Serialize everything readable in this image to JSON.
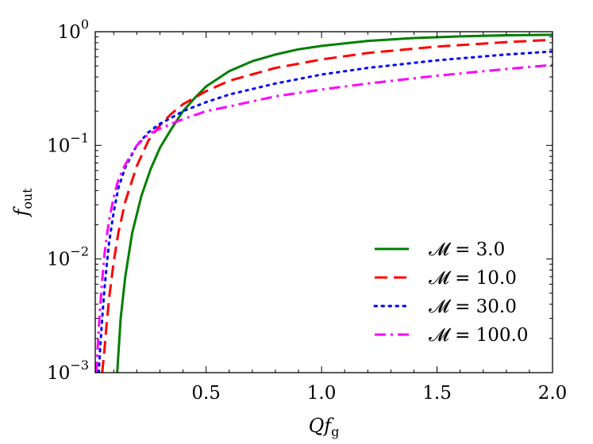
{
  "chart_data": {
    "type": "line",
    "title": "",
    "xlabel": "Qf_g",
    "ylabel": "f_out",
    "xlim": [
      0.02,
      2.0
    ],
    "ylim": [
      0.001,
      1.0
    ],
    "yscale": "log",
    "grid": false,
    "legend_position": "lower-right",
    "xticks": [
      {
        "value": 0.5,
        "label": "0.5"
      },
      {
        "value": 1.0,
        "label": "1.0"
      },
      {
        "value": 1.5,
        "label": "1.5"
      },
      {
        "value": 2.0,
        "label": "2.0"
      }
    ],
    "yticks": [
      {
        "value": 0.001,
        "base": "10",
        "exp": "−3"
      },
      {
        "value": 0.01,
        "base": "10",
        "exp": "−2"
      },
      {
        "value": 0.1,
        "base": "10",
        "exp": "−1"
      },
      {
        "value": 1.0,
        "base": "10",
        "exp": "0"
      }
    ],
    "series": [
      {
        "name": "𝓜 = 3.0",
        "color": "#007f00",
        "style": "solid",
        "x": [
          0.115,
          0.13,
          0.15,
          0.18,
          0.22,
          0.26,
          0.3,
          0.35,
          0.4,
          0.45,
          0.5,
          0.6,
          0.7,
          0.8,
          0.9,
          1.0,
          1.2,
          1.4,
          1.6,
          1.8,
          2.0
        ],
        "y": [
          0.001,
          0.003,
          0.007,
          0.017,
          0.036,
          0.062,
          0.095,
          0.14,
          0.2,
          0.26,
          0.33,
          0.45,
          0.55,
          0.63,
          0.7,
          0.75,
          0.83,
          0.88,
          0.91,
          0.93,
          0.94
        ]
      },
      {
        "name": "𝓜 = 10.0",
        "color": "#ff0000",
        "style": "dashed",
        "x": [
          0.05,
          0.06,
          0.07,
          0.08,
          0.1,
          0.12,
          0.15,
          0.2,
          0.25,
          0.3,
          0.35,
          0.4,
          0.5,
          0.6,
          0.8,
          1.0,
          1.2,
          1.5,
          1.8,
          2.0
        ],
        "y": [
          0.001,
          0.0016,
          0.0028,
          0.0045,
          0.0095,
          0.017,
          0.032,
          0.066,
          0.11,
          0.15,
          0.19,
          0.23,
          0.3,
          0.37,
          0.48,
          0.57,
          0.65,
          0.74,
          0.81,
          0.85
        ]
      },
      {
        "name": "𝓜 = 30.0",
        "color": "#0000ff",
        "style": "dotted",
        "x": [
          0.035,
          0.04,
          0.05,
          0.06,
          0.07,
          0.08,
          0.1,
          0.12,
          0.15,
          0.2,
          0.25,
          0.3,
          0.35,
          0.4,
          0.5,
          0.6,
          0.8,
          1.0,
          1.2,
          1.5,
          1.8,
          2.0
        ],
        "y": [
          0.001,
          0.0015,
          0.003,
          0.0055,
          0.009,
          0.014,
          0.026,
          0.042,
          0.064,
          0.1,
          0.13,
          0.155,
          0.175,
          0.2,
          0.24,
          0.28,
          0.35,
          0.42,
          0.48,
          0.56,
          0.63,
          0.67
        ]
      },
      {
        "name": "𝓜 = 100.0",
        "color": "#ff00ff",
        "style": "dashdot",
        "x": [
          0.025,
          0.03,
          0.04,
          0.05,
          0.06,
          0.07,
          0.08,
          0.1,
          0.12,
          0.15,
          0.2,
          0.25,
          0.3,
          0.35,
          0.4,
          0.5,
          0.6,
          0.8,
          1.0,
          1.2,
          1.5,
          1.8,
          2.0
        ],
        "y": [
          0.001,
          0.0016,
          0.0035,
          0.0065,
          0.011,
          0.016,
          0.022,
          0.035,
          0.05,
          0.068,
          0.1,
          0.125,
          0.14,
          0.155,
          0.17,
          0.2,
          0.22,
          0.27,
          0.31,
          0.35,
          0.41,
          0.47,
          0.51
        ]
      }
    ]
  }
}
